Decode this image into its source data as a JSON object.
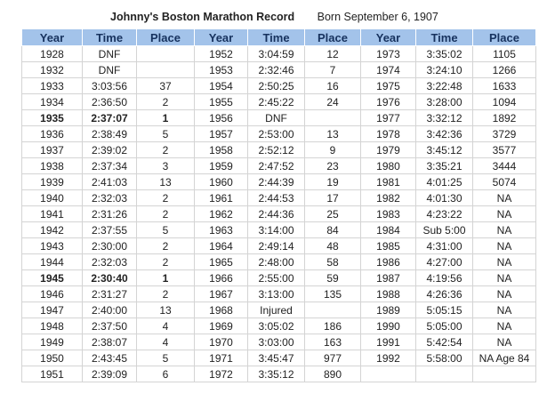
{
  "title": "Johnny's Boston Marathon Record",
  "subtitle": "Born September 6, 1907",
  "table": {
    "header": [
      "Year",
      "Time",
      "Place",
      "Year",
      "Time",
      "Place",
      "Year",
      "Time",
      "Place"
    ],
    "rows": [
      [
        "1928",
        "DNF",
        null,
        "1952",
        "3:04:59",
        "12",
        "1973",
        "3:35:02",
        "1105"
      ],
      [
        "1932",
        "DNF",
        null,
        "1953",
        "2:32:46",
        "7",
        "1974",
        "3:24:10",
        "1266"
      ],
      [
        "1933",
        "3:03:56",
        "37",
        "1954",
        "2:50:25",
        "16",
        "1975",
        "3:22:48",
        "1633"
      ],
      [
        "1934",
        "2:36:50",
        "2",
        "1955",
        "2:45:22",
        "24",
        "1976",
        "3:28:00",
        "1094"
      ],
      [
        "1935",
        "2:37:07",
        "1",
        "1956",
        "DNF",
        null,
        "1977",
        "3:32:12",
        "1892"
      ],
      [
        "1936",
        "2:38:49",
        "5",
        "1957",
        "2:53:00",
        "13",
        "1978",
        "3:42:36",
        "3729"
      ],
      [
        "1937",
        "2:39:02",
        "2",
        "1958",
        "2:52:12",
        "9",
        "1979",
        "3:45:12",
        "3577"
      ],
      [
        "1938",
        "2:37:34",
        "3",
        "1959",
        "2:47:52",
        "23",
        "1980",
        "3:35:21",
        "3444"
      ],
      [
        "1939",
        "2:41:03",
        "13",
        "1960",
        "2:44:39",
        "19",
        "1981",
        "4:01:25",
        "5074"
      ],
      [
        "1940",
        "2:32:03",
        "2",
        "1961",
        "2:44:53",
        "17",
        "1982",
        "4:01:30",
        "NA"
      ],
      [
        "1941",
        "2:31:26",
        "2",
        "1962",
        "2:44:36",
        "25",
        "1983",
        "4:23:22",
        "NA"
      ],
      [
        "1942",
        "2:37:55",
        "5",
        "1963",
        "3:14:00",
        "84",
        "1984",
        "Sub 5:00",
        "NA"
      ],
      [
        "1943",
        "2:30:00",
        "2",
        "1964",
        "2:49:14",
        "48",
        "1985",
        "4:31:00",
        "NA"
      ],
      [
        "1944",
        "2:32:03",
        "2",
        "1965",
        "2:48:00",
        "58",
        "1986",
        "4:27:00",
        "NA"
      ],
      [
        "1945",
        "2:30:40",
        "1",
        "1966",
        "2:55:00",
        "59",
        "1987",
        "4:19:56",
        "NA"
      ],
      [
        "1946",
        "2:31:27",
        "2",
        "1967",
        "3:13:00",
        "135",
        "1988",
        "4:26:36",
        "NA"
      ],
      [
        "1947",
        "2:40:00",
        "13",
        "1968",
        "Injured",
        null,
        "1989",
        "5:05:15",
        "NA"
      ],
      [
        "1948",
        "2:37:50",
        "4",
        "1969",
        "3:05:02",
        "186",
        "1990",
        "5:05:00",
        "NA"
      ],
      [
        "1949",
        "2:38:07",
        "4",
        "1970",
        "3:03:00",
        "163",
        "1991",
        "5:42:54",
        "NA"
      ],
      [
        "1950",
        "2:43:45",
        "5",
        "1971",
        "3:45:47",
        "977",
        "1992",
        "5:58:00",
        "NA Age 84"
      ],
      [
        "1951",
        "2:39:09",
        "6",
        "1972",
        "3:35:12",
        "890",
        null,
        null,
        null
      ]
    ]
  }
}
